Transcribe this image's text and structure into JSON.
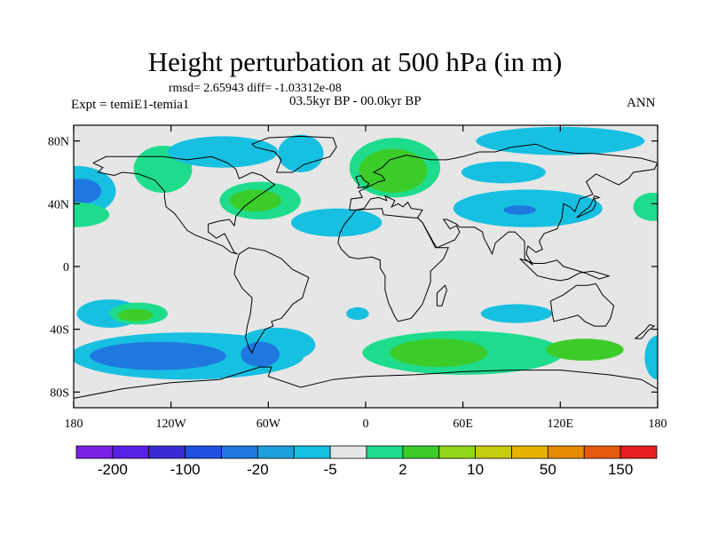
{
  "title": "Height perturbation at 500 hPa (in m)",
  "subtitle": "rmsd= 2.65943 diff= -1.03312e-08",
  "period": "03.5kyr BP - 00.0kyr BP",
  "experiment": "Expt = temiE1-temia1",
  "season": "ANN",
  "axes": {
    "lon_range": [
      -180,
      180
    ],
    "lat_range": [
      -90,
      90
    ],
    "lat_ticks": [
      {
        "value": 80,
        "label": "80N"
      },
      {
        "value": 40,
        "label": "40N"
      },
      {
        "value": 0,
        "label": "0"
      },
      {
        "value": -40,
        "label": "40S"
      },
      {
        "value": -80,
        "label": "80S"
      }
    ],
    "lon_ticks": [
      {
        "value": -180,
        "label": "180"
      },
      {
        "value": -120,
        "label": "120W"
      },
      {
        "value": -60,
        "label": "60W"
      },
      {
        "value": 0,
        "label": "0"
      },
      {
        "value": 60,
        "label": "60E"
      },
      {
        "value": 120,
        "label": "120E"
      },
      {
        "value": 180,
        "label": "180"
      }
    ]
  },
  "colorbar": {
    "colors": [
      "#7a1fe6",
      "#5a1fe6",
      "#3a2ad6",
      "#1f4fe0",
      "#1f78e0",
      "#1ea0dc",
      "#17c0e0",
      "#e6e6e6",
      "#1edc8c",
      "#3ccc2a",
      "#94d61a",
      "#c8cc10",
      "#e6b400",
      "#e68a00",
      "#e65a10",
      "#e61e1e"
    ],
    "labels": [
      "-200",
      "-100",
      "-20",
      "-5",
      "2",
      "10",
      "50",
      "150"
    ]
  },
  "field_regions": [
    {
      "category": "-5",
      "color": "#17c0e0"
    },
    {
      "category": "-20",
      "color": "#1f78e0"
    },
    {
      "category": "2",
      "color": "#1edc8c"
    },
    {
      "category": "10",
      "color": "#3ccc2a"
    }
  ]
}
